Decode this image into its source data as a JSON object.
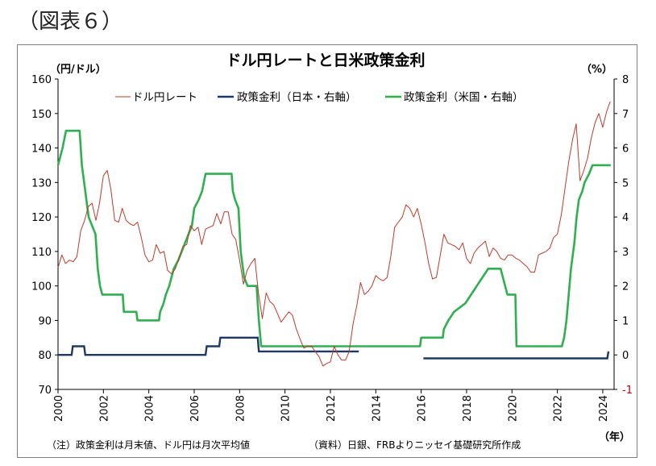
{
  "figure_label": "（図表６）",
  "footnote_left": "（注）政策金利は月末値、ドル円は月次平均値",
  "footnote_right": "（資料）日銀、FRBよりニッセイ基礎研究所作成",
  "colors": {
    "usdjpy": "#c0392b",
    "japan": "#1f3864",
    "us": "#2eb050",
    "frame": "#7f7f7f",
    "axis": "#000000"
  },
  "chart_data": {
    "type": "line",
    "title": "ドル円レートと日米政策金利",
    "ylabel_left": "（円/ドル）",
    "ylabel_right": "（%）",
    "xlabel": "（年）",
    "ylim_left": [
      70,
      160
    ],
    "ylim_right": [
      -1,
      8
    ],
    "xlim": [
      2000,
      2024.5
    ],
    "x_ticks": [
      "2000",
      "2002",
      "2004",
      "2006",
      "2008",
      "2010",
      "2012",
      "2014",
      "2016",
      "2018",
      "2020",
      "2022",
      "2024"
    ],
    "y_ticks_left": [
      "70",
      "80",
      "90",
      "100",
      "110",
      "120",
      "130",
      "140",
      "150",
      "160"
    ],
    "y_ticks_right": [
      "-1",
      "0",
      "1",
      "2",
      "3",
      "4",
      "5",
      "6",
      "7",
      "8"
    ],
    "legend_position": "top",
    "grid": false,
    "series": [
      {
        "name": "ドル円レート",
        "axis": "left",
        "points": [
          [
            2000.0,
            105.3
          ],
          [
            2000.17,
            109.0
          ],
          [
            2000.33,
            106.5
          ],
          [
            2000.5,
            107.5
          ],
          [
            2000.67,
            107.0
          ],
          [
            2000.83,
            108.5
          ],
          [
            2001.0,
            116.0
          ],
          [
            2001.17,
            119.0
          ],
          [
            2001.33,
            123.0
          ],
          [
            2001.5,
            124.0
          ],
          [
            2001.67,
            119.0
          ],
          [
            2001.83,
            124.0
          ],
          [
            2002.0,
            132.0
          ],
          [
            2002.17,
            133.5
          ],
          [
            2002.33,
            128.0
          ],
          [
            2002.5,
            119.0
          ],
          [
            2002.67,
            118.5
          ],
          [
            2002.83,
            122.5
          ],
          [
            2003.0,
            119.0
          ],
          [
            2003.17,
            118.0
          ],
          [
            2003.33,
            117.5
          ],
          [
            2003.5,
            118.5
          ],
          [
            2003.67,
            114.0
          ],
          [
            2003.83,
            109.0
          ],
          [
            2004.0,
            107.0
          ],
          [
            2004.17,
            107.5
          ],
          [
            2004.33,
            112.0
          ],
          [
            2004.5,
            109.5
          ],
          [
            2004.67,
            110.0
          ],
          [
            2004.83,
            104.5
          ],
          [
            2005.0,
            103.5
          ],
          [
            2005.17,
            105.0
          ],
          [
            2005.33,
            108.0
          ],
          [
            2005.5,
            111.5
          ],
          [
            2005.67,
            112.0
          ],
          [
            2005.83,
            117.5
          ],
          [
            2006.0,
            116.0
          ],
          [
            2006.17,
            117.0
          ],
          [
            2006.33,
            112.0
          ],
          [
            2006.5,
            116.5
          ],
          [
            2006.67,
            117.0
          ],
          [
            2006.83,
            117.5
          ],
          [
            2007.0,
            121.0
          ],
          [
            2007.17,
            118.0
          ],
          [
            2007.33,
            121.5
          ],
          [
            2007.5,
            121.5
          ],
          [
            2007.67,
            115.0
          ],
          [
            2007.83,
            113.5
          ],
          [
            2008.0,
            107.5
          ],
          [
            2008.17,
            100.5
          ],
          [
            2008.33,
            104.5
          ],
          [
            2008.5,
            106.5
          ],
          [
            2008.67,
            108.0
          ],
          [
            2008.83,
            98.0
          ],
          [
            2009.0,
            90.5
          ],
          [
            2009.17,
            98.0
          ],
          [
            2009.33,
            95.5
          ],
          [
            2009.5,
            94.5
          ],
          [
            2009.67,
            92.0
          ],
          [
            2009.83,
            89.5
          ],
          [
            2010.0,
            91.0
          ],
          [
            2010.17,
            92.5
          ],
          [
            2010.33,
            91.5
          ],
          [
            2010.5,
            87.5
          ],
          [
            2010.67,
            84.5
          ],
          [
            2010.83,
            82.0
          ],
          [
            2011.0,
            82.5
          ],
          [
            2011.17,
            82.5
          ],
          [
            2011.33,
            81.0
          ],
          [
            2011.5,
            79.5
          ],
          [
            2011.67,
            76.8
          ],
          [
            2011.83,
            77.5
          ],
          [
            2012.0,
            78.0
          ],
          [
            2012.17,
            82.5
          ],
          [
            2012.33,
            80.0
          ],
          [
            2012.5,
            78.5
          ],
          [
            2012.67,
            78.5
          ],
          [
            2012.83,
            81.0
          ],
          [
            2013.0,
            89.0
          ],
          [
            2013.17,
            94.5
          ],
          [
            2013.33,
            101.0
          ],
          [
            2013.5,
            97.5
          ],
          [
            2013.67,
            98.5
          ],
          [
            2013.83,
            100.0
          ],
          [
            2014.0,
            103.0
          ],
          [
            2014.17,
            102.0
          ],
          [
            2014.33,
            101.5
          ],
          [
            2014.5,
            102.5
          ],
          [
            2014.67,
            109.0
          ],
          [
            2014.83,
            117.0
          ],
          [
            2015.0,
            118.5
          ],
          [
            2015.17,
            120.0
          ],
          [
            2015.33,
            123.5
          ],
          [
            2015.5,
            122.5
          ],
          [
            2015.67,
            120.0
          ],
          [
            2015.83,
            122.5
          ],
          [
            2016.0,
            118.0
          ],
          [
            2016.17,
            112.5
          ],
          [
            2016.33,
            106.5
          ],
          [
            2016.5,
            102.0
          ],
          [
            2016.67,
            102.5
          ],
          [
            2016.83,
            108.5
          ],
          [
            2017.0,
            115.0
          ],
          [
            2017.17,
            112.5
          ],
          [
            2017.33,
            112.0
          ],
          [
            2017.5,
            111.5
          ],
          [
            2017.67,
            110.5
          ],
          [
            2017.83,
            112.5
          ],
          [
            2018.0,
            108.0
          ],
          [
            2018.17,
            106.5
          ],
          [
            2018.33,
            109.5
          ],
          [
            2018.5,
            111.0
          ],
          [
            2018.67,
            112.0
          ],
          [
            2018.83,
            113.0
          ],
          [
            2019.0,
            108.5
          ],
          [
            2019.17,
            111.0
          ],
          [
            2019.33,
            110.0
          ],
          [
            2019.5,
            108.0
          ],
          [
            2019.67,
            107.5
          ],
          [
            2019.83,
            109.0
          ],
          [
            2020.0,
            109.0
          ],
          [
            2020.17,
            108.0
          ],
          [
            2020.33,
            107.5
          ],
          [
            2020.5,
            106.5
          ],
          [
            2020.67,
            105.5
          ],
          [
            2020.83,
            104.0
          ],
          [
            2021.0,
            104.0
          ],
          [
            2021.17,
            109.0
          ],
          [
            2021.33,
            109.5
          ],
          [
            2021.5,
            110.0
          ],
          [
            2021.67,
            111.0
          ],
          [
            2021.83,
            114.0
          ],
          [
            2022.0,
            115.0
          ],
          [
            2022.17,
            120.5
          ],
          [
            2022.33,
            128.0
          ],
          [
            2022.5,
            136.0
          ],
          [
            2022.67,
            142.5
          ],
          [
            2022.83,
            147.0
          ],
          [
            2023.0,
            130.5
          ],
          [
            2023.17,
            133.5
          ],
          [
            2023.33,
            137.0
          ],
          [
            2023.5,
            143.0
          ],
          [
            2023.67,
            147.5
          ],
          [
            2023.83,
            150.0
          ],
          [
            2024.0,
            146.0
          ],
          [
            2024.17,
            150.5
          ],
          [
            2024.33,
            153.5
          ]
        ]
      },
      {
        "name": "政策金利（日本・右軸）",
        "axis": "right",
        "points": [
          [
            2000.0,
            0.0
          ],
          [
            2000.6,
            0.0
          ],
          [
            2000.65,
            0.25
          ],
          [
            2001.15,
            0.25
          ],
          [
            2001.2,
            0.0
          ],
          [
            2006.5,
            0.0
          ],
          [
            2006.55,
            0.25
          ],
          [
            2007.1,
            0.25
          ],
          [
            2007.15,
            0.5
          ],
          [
            2008.8,
            0.5
          ],
          [
            2008.85,
            0.1
          ],
          [
            2013.25,
            0.1
          ]
        ],
        "segment2": [
          [
            2016.1,
            -0.1
          ],
          [
            2024.2,
            -0.1
          ],
          [
            2024.25,
            0.1
          ]
        ]
      },
      {
        "name": "政策金利（米国・右軸）",
        "axis": "right",
        "points": [
          [
            2000.0,
            5.5
          ],
          [
            2000.1,
            5.75
          ],
          [
            2000.2,
            6.0
          ],
          [
            2000.35,
            6.5
          ],
          [
            2000.95,
            6.5
          ],
          [
            2001.05,
            5.5
          ],
          [
            2001.15,
            5.0
          ],
          [
            2001.25,
            4.5
          ],
          [
            2001.35,
            4.0
          ],
          [
            2001.5,
            3.75
          ],
          [
            2001.65,
            3.5
          ],
          [
            2001.75,
            2.5
          ],
          [
            2001.85,
            2.0
          ],
          [
            2001.95,
            1.75
          ],
          [
            2002.85,
            1.75
          ],
          [
            2002.9,
            1.25
          ],
          [
            2003.45,
            1.25
          ],
          [
            2003.5,
            1.0
          ],
          [
            2004.45,
            1.0
          ],
          [
            2004.5,
            1.25
          ],
          [
            2004.65,
            1.5
          ],
          [
            2004.75,
            1.75
          ],
          [
            2004.9,
            2.0
          ],
          [
            2005.0,
            2.25
          ],
          [
            2005.1,
            2.5
          ],
          [
            2005.3,
            2.75
          ],
          [
            2005.45,
            3.0
          ],
          [
            2005.6,
            3.25
          ],
          [
            2005.75,
            3.5
          ],
          [
            2005.9,
            3.75
          ],
          [
            2006.0,
            4.25
          ],
          [
            2006.2,
            4.5
          ],
          [
            2006.35,
            4.75
          ],
          [
            2006.5,
            5.25
          ],
          [
            2007.65,
            5.25
          ],
          [
            2007.7,
            4.75
          ],
          [
            2007.8,
            4.5
          ],
          [
            2007.95,
            4.25
          ],
          [
            2008.05,
            3.0
          ],
          [
            2008.2,
            2.25
          ],
          [
            2008.35,
            2.0
          ],
          [
            2008.75,
            2.0
          ],
          [
            2008.8,
            1.5
          ],
          [
            2008.85,
            1.0
          ],
          [
            2008.95,
            0.25
          ],
          [
            2015.95,
            0.25
          ],
          [
            2016.0,
            0.5
          ],
          [
            2016.95,
            0.5
          ],
          [
            2017.0,
            0.75
          ],
          [
            2017.2,
            1.0
          ],
          [
            2017.45,
            1.25
          ],
          [
            2017.95,
            1.5
          ],
          [
            2018.2,
            1.75
          ],
          [
            2018.45,
            2.0
          ],
          [
            2018.7,
            2.25
          ],
          [
            2018.95,
            2.5
          ],
          [
            2019.5,
            2.5
          ],
          [
            2019.6,
            2.25
          ],
          [
            2019.7,
            2.0
          ],
          [
            2019.8,
            1.75
          ],
          [
            2020.15,
            1.75
          ],
          [
            2020.2,
            0.25
          ],
          [
            2022.2,
            0.25
          ],
          [
            2022.3,
            0.5
          ],
          [
            2022.4,
            1.0
          ],
          [
            2022.5,
            1.75
          ],
          [
            2022.6,
            2.5
          ],
          [
            2022.75,
            3.25
          ],
          [
            2022.85,
            4.0
          ],
          [
            2022.95,
            4.5
          ],
          [
            2023.1,
            4.75
          ],
          [
            2023.2,
            5.0
          ],
          [
            2023.4,
            5.25
          ],
          [
            2023.55,
            5.5
          ],
          [
            2024.35,
            5.5
          ]
        ]
      }
    ]
  }
}
